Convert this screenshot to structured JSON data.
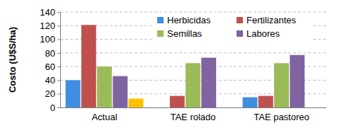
{
  "chart_data": {
    "type": "bar",
    "y_label": "Costo (U$S/ha)",
    "categories": [
      "Actual",
      "TAE rolado",
      "TAE pastoreo"
    ],
    "series": [
      {
        "name": "Herbicidas",
        "color": "#3f8ee0",
        "values": [
          40,
          0,
          15
        ]
      },
      {
        "name": "Fertilizantes",
        "color": "#c0504d",
        "values": [
          121,
          17,
          17
        ]
      },
      {
        "name": "Semillas",
        "color": "#9bbb59",
        "values": [
          60,
          65,
          65
        ]
      },
      {
        "name": "Labores",
        "color": "#8064a2",
        "values": [
          46,
          73,
          77
        ]
      },
      {
        "color": "#ffc000",
        "values": [
          13,
          0,
          0
        ]
      }
    ],
    "ylim": [
      0,
      140
    ],
    "yticks": [
      0,
      20,
      40,
      60,
      80,
      100,
      120,
      140
    ],
    "grid": true,
    "legend": "top-right"
  }
}
